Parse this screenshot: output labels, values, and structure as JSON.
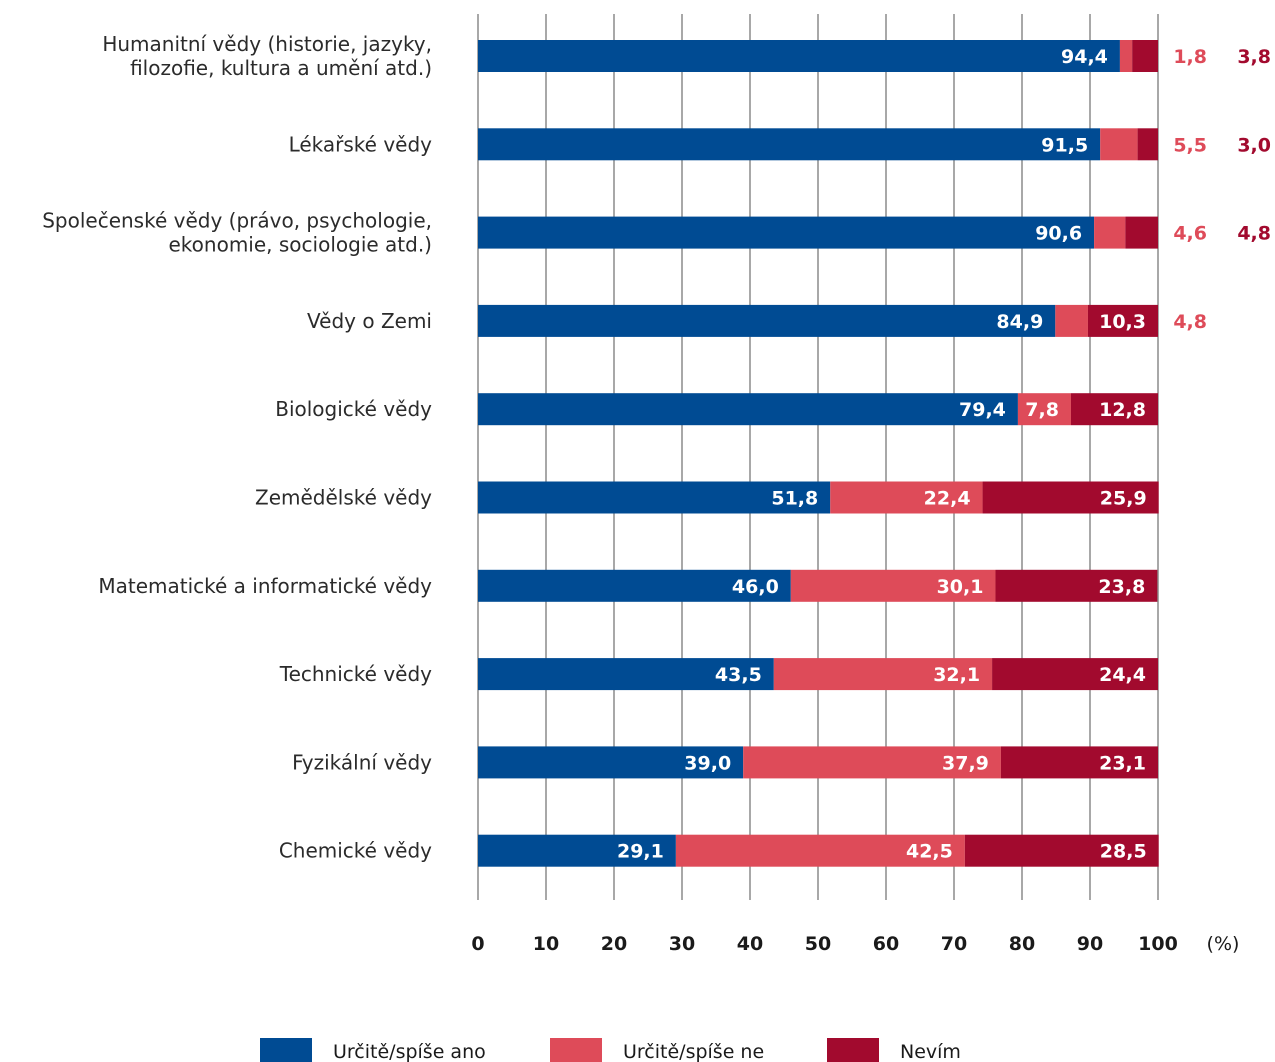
{
  "chart_data": {
    "type": "bar",
    "orientation": "horizontal",
    "stacked": true,
    "categories": [
      [
        "Humanitní vědy (historie, jazyky,",
        "filozofie, kultura a umění atd.)"
      ],
      [
        "Lékařské vědy"
      ],
      [
        "Společenské vědy (právo, psychologie,",
        "ekonomie, sociologie atd.)"
      ],
      [
        "Vědy o Zemi"
      ],
      [
        "Biologické vědy"
      ],
      [
        "Zemědělské vědy"
      ],
      [
        "Matematické a informatické vědy"
      ],
      [
        "Technické vědy"
      ],
      [
        "Fyzikální vědy"
      ],
      [
        "Chemické vědy"
      ]
    ],
    "series": [
      {
        "name": "Určitě/spíše ano",
        "color": "#004b93",
        "values": [
          94.4,
          91.5,
          90.6,
          84.9,
          79.4,
          51.8,
          46.0,
          43.5,
          39.0,
          29.1
        ],
        "labels": [
          "94,4",
          "91,5",
          "90,6",
          "84,9",
          "79,4",
          "51,8",
          "46,0",
          "43,5",
          "39,0",
          "29,1"
        ]
      },
      {
        "name": "Určitě/spíše ne",
        "color": "#de4b59",
        "values": [
          1.8,
          5.5,
          4.6,
          4.8,
          7.8,
          22.4,
          30.1,
          32.1,
          37.9,
          42.5
        ],
        "labels": [
          "1,8",
          "5,5",
          "4,6",
          "4,8",
          "7,8",
          "22,4",
          "30,1",
          "32,1",
          "37,9",
          "42,5"
        ]
      },
      {
        "name": "Nevím",
        "color": "#a20a2e",
        "values": [
          3.8,
          3.0,
          4.8,
          10.3,
          12.8,
          25.9,
          23.8,
          24.4,
          23.1,
          28.5
        ],
        "labels": [
          "3,8",
          "3,0",
          "4,8",
          "10,3",
          "12,8",
          "25,9",
          "23,8",
          "24,4",
          "23,1",
          "28,5"
        ]
      }
    ],
    "xlim": [
      0,
      100
    ],
    "xticks": [
      0,
      10,
      20,
      30,
      40,
      50,
      60,
      70,
      80,
      90,
      100
    ],
    "x_unit": "(%)",
    "grid": true,
    "legend_position": "bottom"
  }
}
